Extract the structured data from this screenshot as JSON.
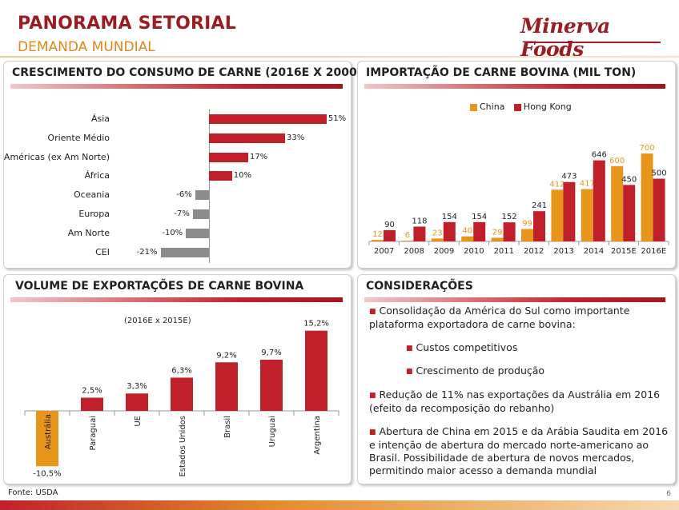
{
  "header": {
    "title": "PANORAMA SETORIAL",
    "subtitle": "DEMANDA MUNDIAL",
    "logo_text": "Minerva Foods"
  },
  "colors": {
    "red": "#c0202a",
    "dark_red": "#9b1c22",
    "orange": "#e8951c",
    "gray": "#8c8c8c"
  },
  "panels": {
    "consumo": {
      "title": "CRESCIMENTO DO CONSUMO DE CARNE (2016E X 2000)"
    },
    "importacao": {
      "title": "IMPORTAÇÃO DE CARNE BOVINA (MIL TON)"
    },
    "exportacao": {
      "title": "VOLUME DE EXPORTAÇÕES DE CARNE BOVINA"
    },
    "consideracoes": {
      "title": "CONSIDERAÇÕES",
      "items": [
        "Consolidação da América do Sul como importante plataforma exportadora de carne bovina:",
        "Custos competitivos",
        "Crescimento de produção",
        "Redução de 11% nas exportações da Austrália em 2016 (efeito da recomposição do rebanho)",
        "Abertura de China em 2015 e da Arábia Saudita em 2016 e intenção de abertura do mercado norte-americano ao Brasil. Possibilidade de abertura de novos mercados, permitindo maior acesso a demanda mundial"
      ]
    }
  },
  "chart_data": [
    {
      "type": "bar",
      "orientation": "horizontal",
      "categories": [
        "Ásia",
        "Oriente Médio",
        "Américas (ex Am Norte)",
        "África",
        "Oceania",
        "Europa",
        "Am Norte",
        "CEI"
      ],
      "values": [
        51,
        33,
        17,
        10,
        -6,
        -7,
        -10,
        -21
      ],
      "labels": [
        "51%",
        "33%",
        "17%",
        "10%",
        "-6%",
        "-7%",
        "-10%",
        "-21%"
      ],
      "unit": "%"
    },
    {
      "type": "bar",
      "categories": [
        "2007",
        "2008",
        "2009",
        "2010",
        "2011",
        "2012",
        "2013",
        "2014",
        "2015E",
        "2016E"
      ],
      "series": [
        {
          "name": "China",
          "color": "#e8951c",
          "values": [
            12,
            6,
            23,
            40,
            29,
            99,
            412,
            417,
            600,
            700
          ]
        },
        {
          "name": "Hong Kong",
          "color": "#c0202a",
          "values": [
            90,
            118,
            154,
            154,
            152,
            241,
            473,
            646,
            450,
            500
          ]
        }
      ],
      "ylim": [
        0,
        760
      ]
    },
    {
      "type": "bar",
      "subtitle": "(2016E x 2015E)",
      "categories": [
        "Austrália",
        "Paraguai",
        "UE",
        "Estados Unidos",
        "Brasil",
        "Uruguai",
        "Argentina"
      ],
      "values": [
        -10.5,
        2.5,
        3.3,
        6.3,
        9.2,
        9.7,
        15.2
      ],
      "labels": [
        "-10,5%",
        "2,5%",
        "3,3%",
        "6,3%",
        "9,2%",
        "9,7%",
        "15,2%"
      ],
      "unit": "%"
    }
  ],
  "footer": {
    "source": "Fonte: USDA",
    "page": "6"
  }
}
